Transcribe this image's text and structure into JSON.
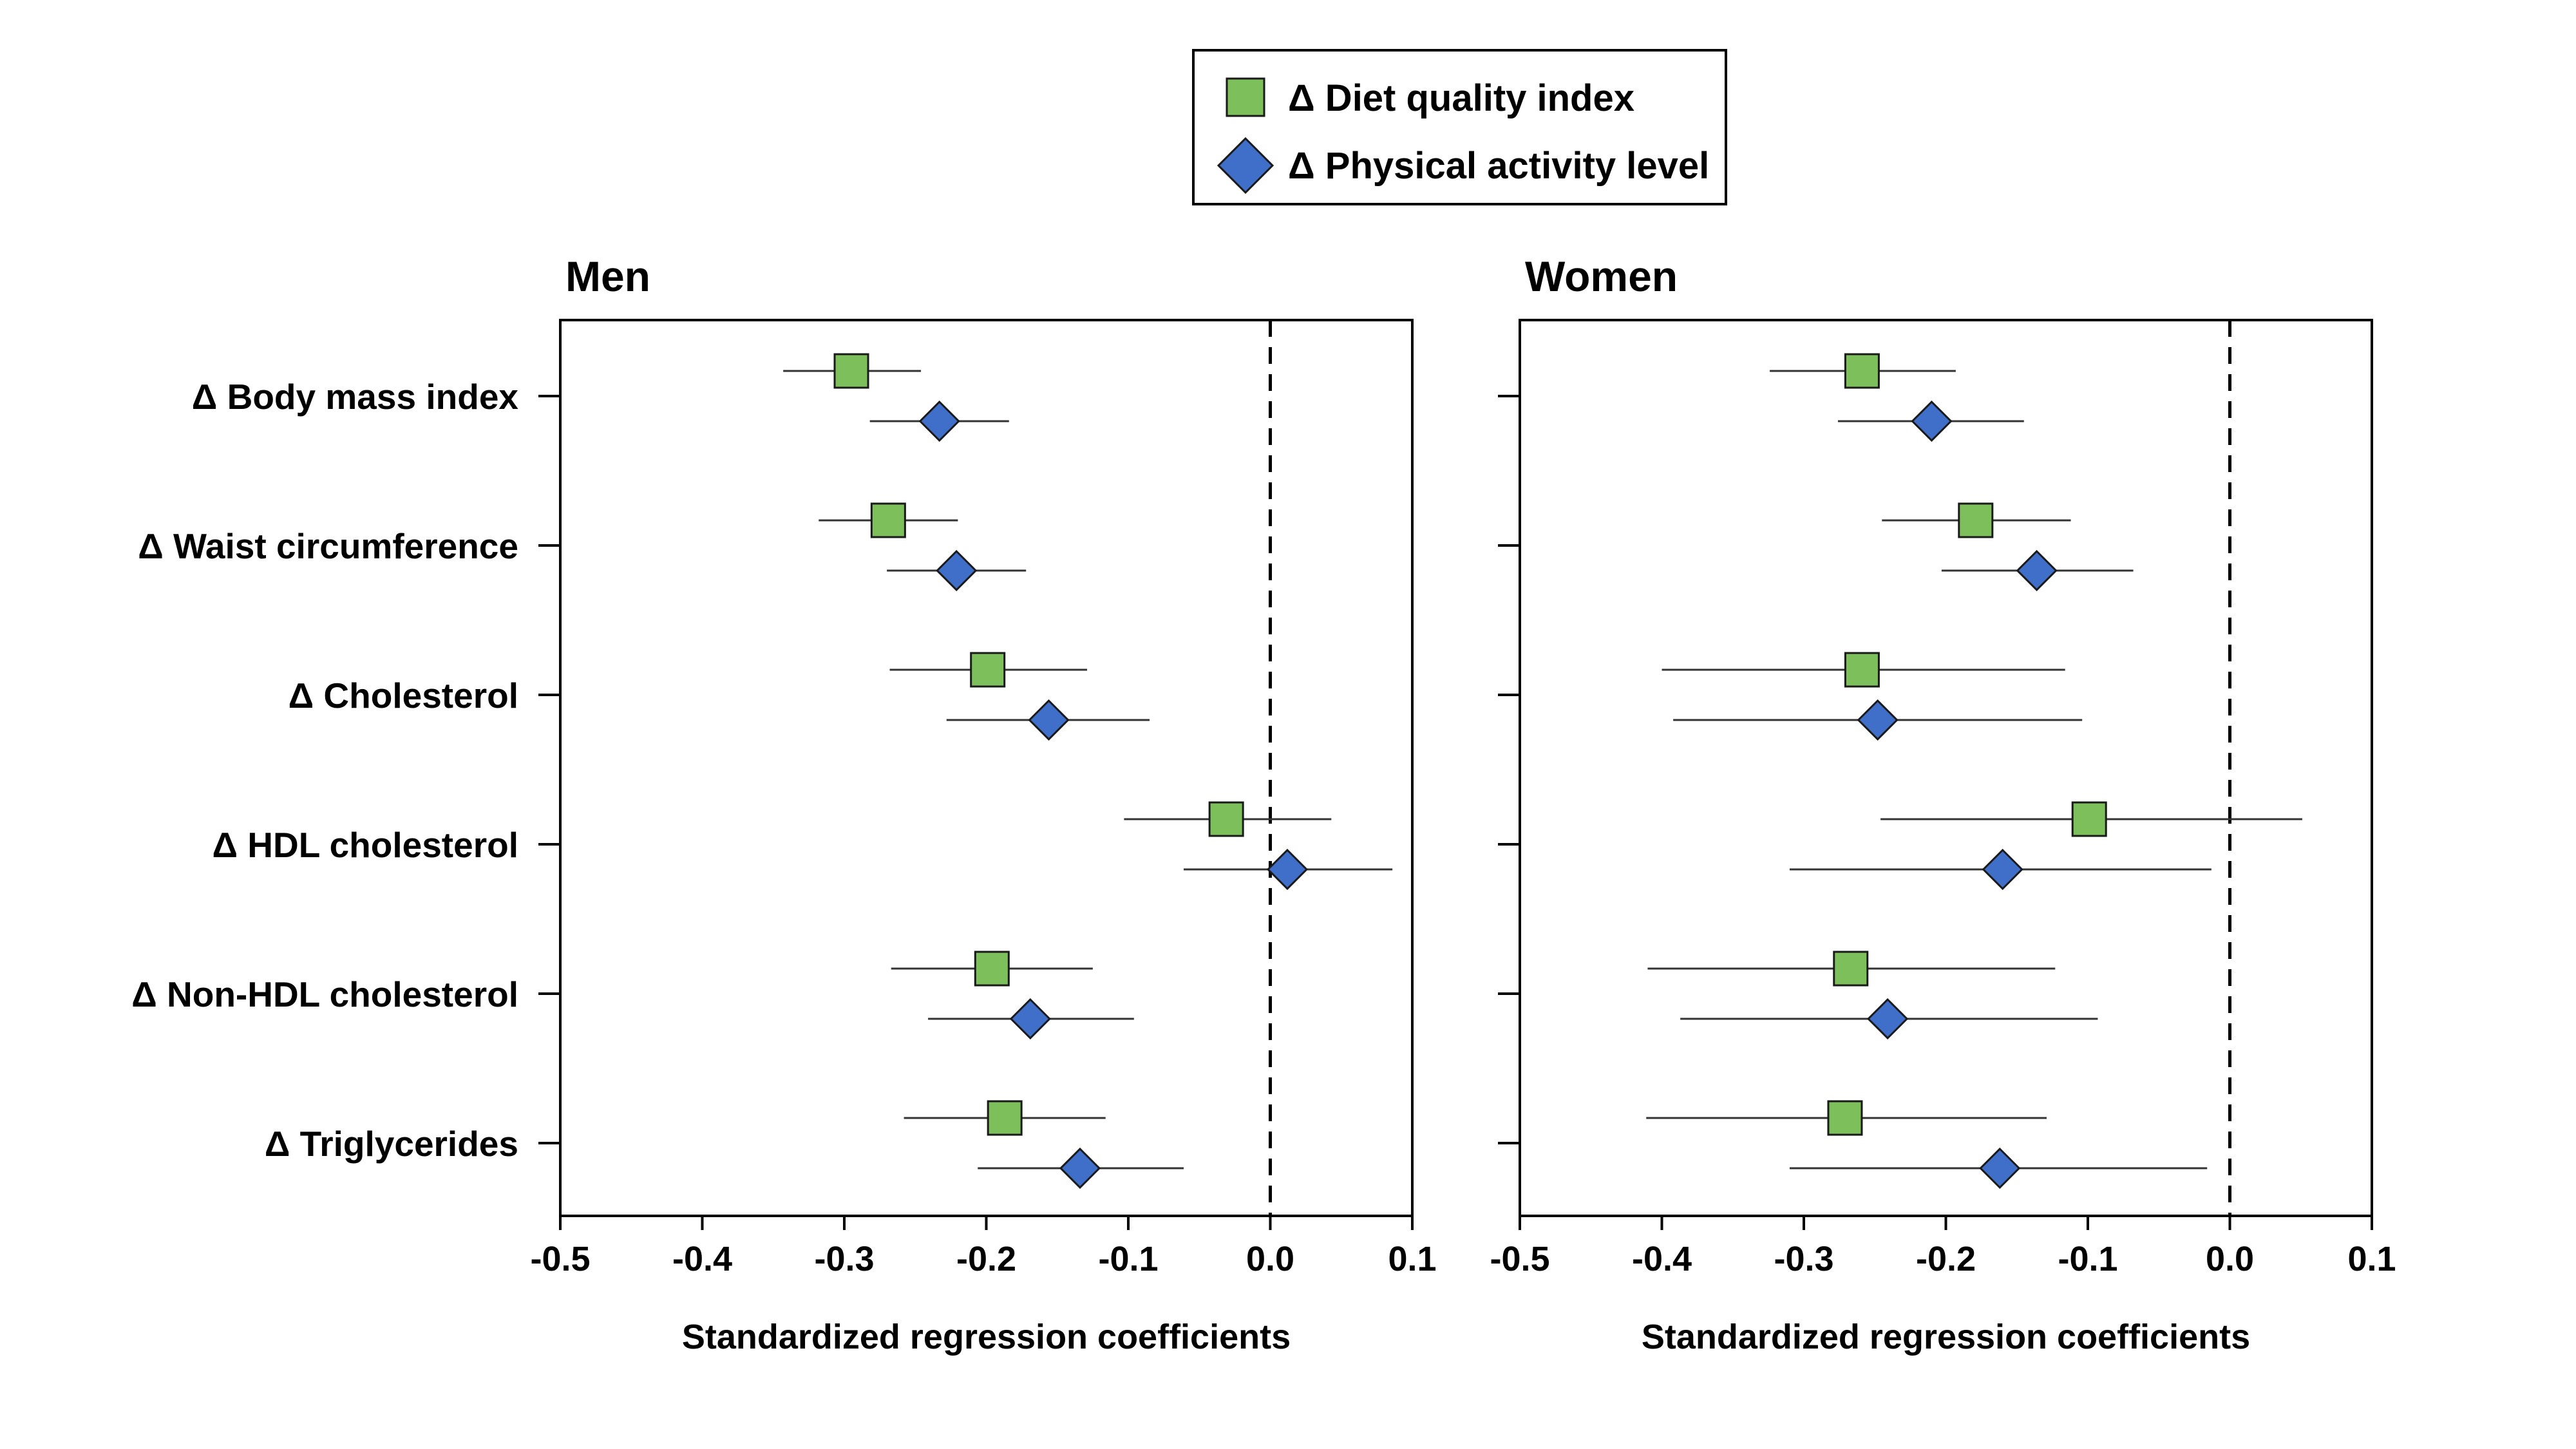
{
  "legend": {
    "items": [
      {
        "label": "Δ Diet quality index",
        "marker": "square",
        "color": "#7dbf5b"
      },
      {
        "label": "Δ Physical activity level",
        "marker": "diamond",
        "color": "#3f6fc9"
      }
    ]
  },
  "colors": {
    "diet": "#7dbf5b",
    "activity": "#3f6fc9",
    "outline": "#1a1a1a"
  },
  "chart_data": [
    {
      "type": "scatter",
      "title": "Men",
      "xlabel": "Standardized regression coefficients",
      "xlim": [
        -0.5,
        0.1
      ],
      "xticks": [
        "-0.5",
        "-0.4",
        "-0.3",
        "-0.2",
        "-0.1",
        "0.0",
        "0.1"
      ],
      "reference_line": 0.0,
      "categories": [
        "Δ Body mass index",
        "Δ Waist circumference",
        "Δ Cholesterol",
        "Δ HDL cholesterol",
        "Δ Non-HDL cholesterol",
        "Δ Triglycerides"
      ],
      "series": [
        {
          "name": "Δ Diet quality index",
          "values": [
            -0.295,
            -0.269,
            -0.199,
            -0.031,
            -0.196,
            -0.187
          ],
          "lower": [
            -0.343,
            -0.318,
            -0.268,
            -0.103,
            -0.267,
            -0.258
          ],
          "upper": [
            -0.246,
            -0.22,
            -0.129,
            0.043,
            -0.125,
            -0.116
          ]
        },
        {
          "name": "Δ Physical activity level",
          "values": [
            -0.233,
            -0.221,
            -0.156,
            0.012,
            -0.169,
            -0.134
          ],
          "lower": [
            -0.282,
            -0.27,
            -0.228,
            -0.061,
            -0.241,
            -0.206
          ],
          "upper": [
            -0.184,
            -0.172,
            -0.085,
            0.086,
            -0.096,
            -0.061
          ]
        }
      ]
    },
    {
      "type": "scatter",
      "title": "Women",
      "xlabel": "Standardized regression coefficients",
      "xlim": [
        -0.5,
        0.1
      ],
      "xticks": [
        "-0.5",
        "-0.4",
        "-0.3",
        "-0.2",
        "-0.1",
        "0.0",
        "0.1"
      ],
      "reference_line": 0.0,
      "categories": [
        "Δ Body mass index",
        "Δ Waist circumference",
        "Δ Cholesterol",
        "Δ HDL cholesterol",
        "Δ Non-HDL cholesterol",
        "Δ Triglycerides"
      ],
      "series": [
        {
          "name": "Δ Diet quality index",
          "values": [
            -0.259,
            -0.179,
            -0.259,
            -0.099,
            -0.267,
            -0.271
          ],
          "lower": [
            -0.324,
            -0.245,
            -0.4,
            -0.246,
            -0.41,
            -0.411
          ],
          "upper": [
            -0.193,
            -0.112,
            -0.116,
            0.051,
            -0.123,
            -0.129
          ]
        },
        {
          "name": "Δ Physical activity level",
          "values": [
            -0.21,
            -0.136,
            -0.248,
            -0.16,
            -0.241,
            -0.162
          ],
          "lower": [
            -0.276,
            -0.203,
            -0.392,
            -0.31,
            -0.387,
            -0.31
          ],
          "upper": [
            -0.145,
            -0.068,
            -0.104,
            -0.013,
            -0.093,
            -0.016
          ]
        }
      ]
    }
  ]
}
